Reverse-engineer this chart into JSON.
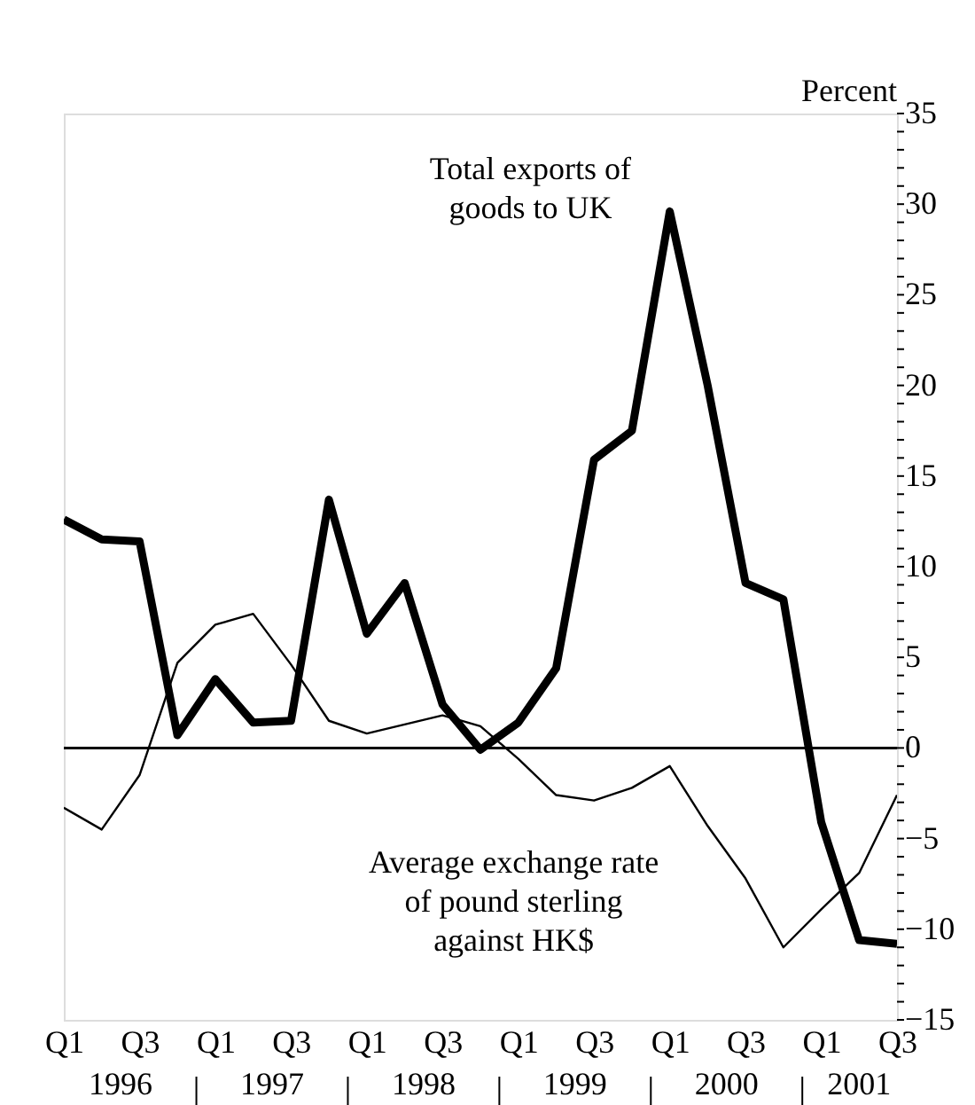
{
  "chart_data": {
    "type": "line",
    "ylabel": "Percent",
    "categories": [
      "Q1",
      null,
      "Q3",
      null,
      "Q1",
      null,
      "Q3",
      null,
      "Q1",
      null,
      "Q3",
      null,
      "Q1",
      null,
      "Q3",
      null,
      "Q1",
      null,
      "Q3",
      null,
      "Q1",
      null,
      "Q3"
    ],
    "series": [
      {
        "name": "Total exports of goods to UK",
        "color": "#000000",
        "values": [
          12.6,
          11.5,
          11.4,
          0.7,
          3.8,
          1.4,
          1.5,
          13.7,
          6.3,
          9.1,
          2.4,
          -0.1,
          1.4,
          4.4,
          15.9,
          17.5,
          29.6,
          20.0,
          9.1,
          8.2,
          -4.1,
          -10.6,
          -10.8
        ]
      },
      {
        "name": "Average exchange rate of pound sterling against HK$",
        "color": "#000000",
        "values": [
          -3.3,
          -4.5,
          -1.5,
          4.7,
          6.8,
          7.4,
          4.6,
          1.5,
          0.8,
          1.3,
          1.8,
          1.2,
          -0.6,
          -2.6,
          -2.9,
          -2.2,
          -1.0,
          -4.3,
          -7.2,
          -11.0,
          -8.9,
          -6.9,
          -2.6
        ]
      }
    ],
    "ylim": [
      -15,
      35
    ],
    "yticks": [
      -15,
      -10,
      -5,
      0,
      5,
      10,
      15,
      20,
      25,
      30,
      35
    ],
    "ref_lines": [
      {
        "axis": "y",
        "value": 0,
        "color": "#000000"
      }
    ],
    "annotations": [
      "1996",
      "1997",
      "1998",
      "1999",
      "2000",
      "2001"
    ],
    "grid": false,
    "legend": false,
    "marker": "none",
    "line_style": "solid"
  }
}
